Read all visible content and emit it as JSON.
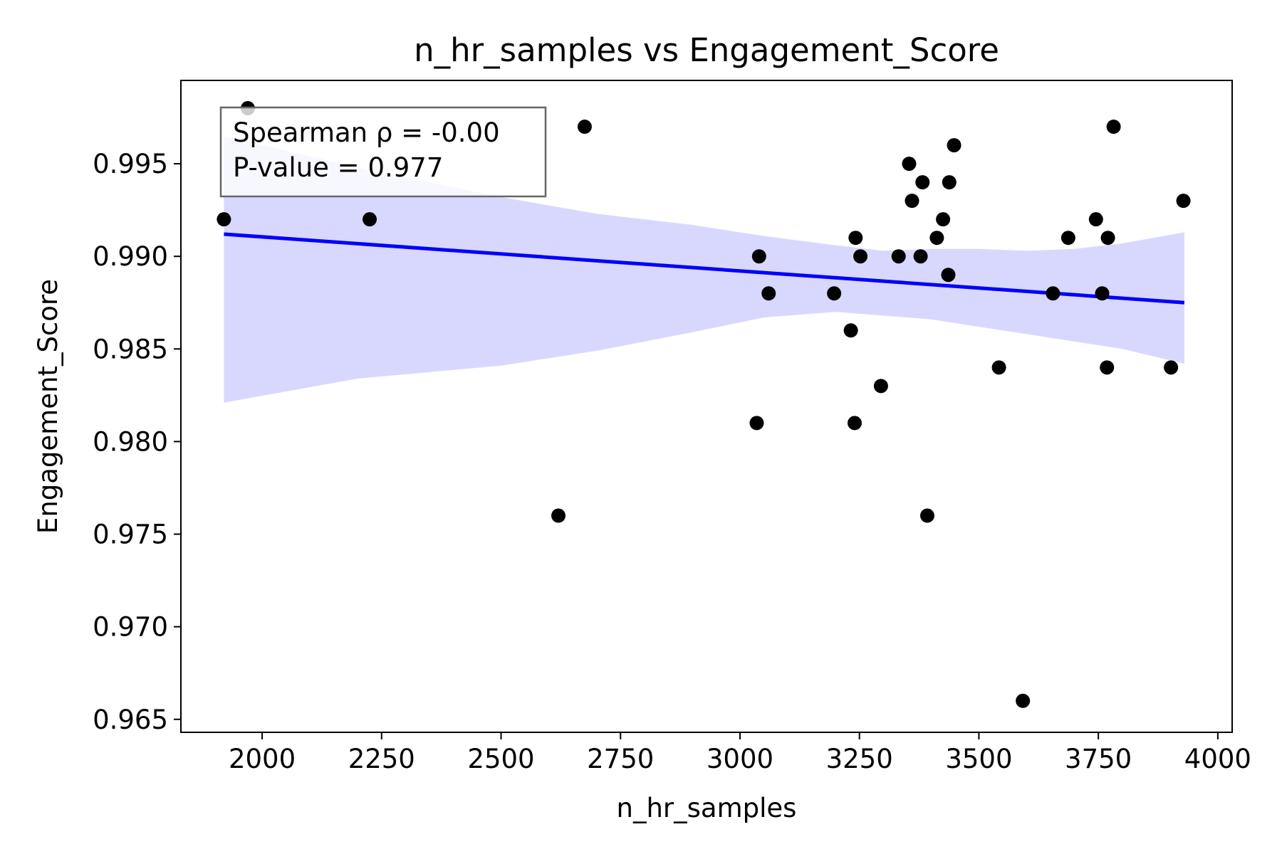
{
  "chart_data": {
    "type": "scatter",
    "title": "n_hr_samples vs Engagement_Score",
    "xlabel": "n_hr_samples",
    "ylabel": "Engagement_Score",
    "xlim": [
      1830,
      4030
    ],
    "ylim": [
      0.9643,
      0.9995
    ],
    "xticks": [
      2000,
      2250,
      2500,
      2750,
      3000,
      3250,
      3500,
      3750,
      4000
    ],
    "xtick_labels": [
      "2000",
      "2250",
      "2500",
      "2750",
      "3000",
      "3250",
      "3500",
      "3750",
      "4000"
    ],
    "yticks": [
      0.965,
      0.97,
      0.975,
      0.98,
      0.985,
      0.99,
      0.995
    ],
    "ytick_labels": [
      "0.965",
      "0.970",
      "0.975",
      "0.980",
      "0.985",
      "0.990",
      "0.995"
    ],
    "grid": false,
    "annotation": {
      "line1": "Spearman ρ = -0.00",
      "line2": "P-value = 0.977",
      "placement": "top-left"
    },
    "colors": {
      "points": "#000000",
      "regression_line": "#0000ff",
      "confidence_band": "#d8d8ff",
      "box_edge": "#666666"
    },
    "points": [
      {
        "x": 1920,
        "y": 0.992
      },
      {
        "x": 1970,
        "y": 0.998
      },
      {
        "x": 2225,
        "y": 0.992
      },
      {
        "x": 2620,
        "y": 0.976
      },
      {
        "x": 2675,
        "y": 0.997
      },
      {
        "x": 3035,
        "y": 0.981
      },
      {
        "x": 3040,
        "y": 0.99
      },
      {
        "x": 3060,
        "y": 0.988
      },
      {
        "x": 3197,
        "y": 0.988
      },
      {
        "x": 3232,
        "y": 0.986
      },
      {
        "x": 3240,
        "y": 0.981
      },
      {
        "x": 3242,
        "y": 0.991
      },
      {
        "x": 3252,
        "y": 0.99
      },
      {
        "x": 3295,
        "y": 0.983
      },
      {
        "x": 3332,
        "y": 0.99
      },
      {
        "x": 3354,
        "y": 0.995
      },
      {
        "x": 3360,
        "y": 0.993
      },
      {
        "x": 3378,
        "y": 0.99
      },
      {
        "x": 3382,
        "y": 0.994
      },
      {
        "x": 3392,
        "y": 0.976
      },
      {
        "x": 3412,
        "y": 0.991
      },
      {
        "x": 3425,
        "y": 0.992
      },
      {
        "x": 3436,
        "y": 0.989
      },
      {
        "x": 3438,
        "y": 0.994
      },
      {
        "x": 3448,
        "y": 0.996
      },
      {
        "x": 3542,
        "y": 0.984
      },
      {
        "x": 3592,
        "y": 0.966
      },
      {
        "x": 3655,
        "y": 0.988
      },
      {
        "x": 3687,
        "y": 0.991
      },
      {
        "x": 3745,
        "y": 0.992
      },
      {
        "x": 3758,
        "y": 0.988
      },
      {
        "x": 3768,
        "y": 0.984
      },
      {
        "x": 3770,
        "y": 0.991
      },
      {
        "x": 3782,
        "y": 0.997
      },
      {
        "x": 3902,
        "y": 0.984
      },
      {
        "x": 3928,
        "y": 0.993
      }
    ],
    "regression": {
      "x": [
        1920,
        3930
      ],
      "y": [
        0.9912,
        0.9875
      ]
    },
    "confidence_band": {
      "x": [
        1920,
        2200,
        2500,
        2700,
        2900,
        3050,
        3200,
        3300,
        3400,
        3500,
        3600,
        3700,
        3800,
        3930
      ],
      "lower": [
        0.9821,
        0.9834,
        0.9841,
        0.9849,
        0.9859,
        0.9867,
        0.987,
        0.9868,
        0.9866,
        0.9862,
        0.9858,
        0.9854,
        0.985,
        0.9842
      ],
      "upper": [
        0.9965,
        0.9948,
        0.9932,
        0.9923,
        0.9917,
        0.9911,
        0.9906,
        0.9903,
        0.9904,
        0.9904,
        0.9903,
        0.9904,
        0.9907,
        0.9913
      ]
    }
  }
}
